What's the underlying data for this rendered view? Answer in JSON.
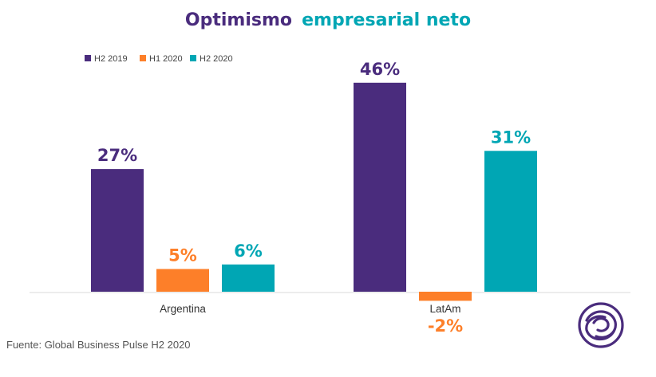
{
  "title": {
    "part1": "Optimismo",
    "part2": "empresarial neto",
    "color1": "#4a2c7d",
    "color2": "#00a6b4"
  },
  "source": "Fuente: Global Business Pulse H2 2020",
  "logo": {
    "icon": "swirl-logo-icon",
    "color": "#4a2c7d"
  },
  "chart_data": {
    "type": "bar",
    "categories": [
      "Argentina",
      "LatAm"
    ],
    "series": [
      {
        "name": "H2 2019",
        "color": "#4a2c7d",
        "values": [
          27,
          46
        ],
        "labels": [
          "27%",
          "46%"
        ]
      },
      {
        "name": "H1 2020",
        "color": "#fd7f29",
        "values": [
          5,
          -2
        ],
        "labels": [
          "5%",
          "-2%"
        ]
      },
      {
        "name": "H2 2020",
        "color": "#00a6b4",
        "values": [
          6,
          31
        ],
        "labels": [
          "6%",
          "31%"
        ]
      }
    ],
    "unit": "%",
    "grid": false,
    "legend_position": "top-left",
    "ylim": [
      -2,
      46
    ]
  }
}
